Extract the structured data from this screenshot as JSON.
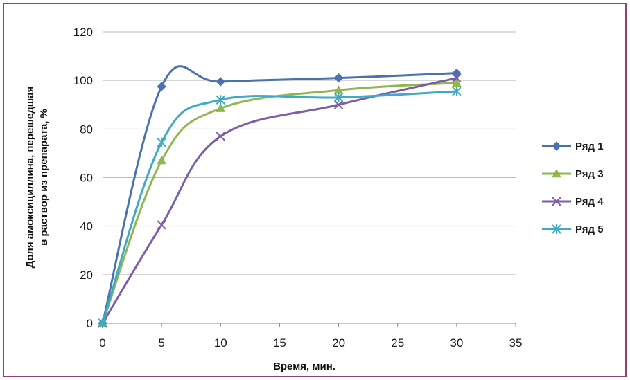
{
  "chart_data": {
    "type": "line",
    "title": "",
    "xlabel": "Время, мин.",
    "ylabel": "Доля амоксициллина, перешедшая\nв раствор из препарата, %",
    "xlim": [
      0,
      35
    ],
    "ylim": [
      0,
      120
    ],
    "x_ticks": [
      0,
      5,
      10,
      15,
      20,
      25,
      30,
      35
    ],
    "y_ticks": [
      0,
      20,
      40,
      60,
      80,
      100,
      120
    ],
    "grid": "horizontal",
    "legend_position": "right",
    "x": [
      0,
      5,
      10,
      20,
      30
    ],
    "series": [
      {
        "name": "Ряд 1",
        "values": [
          0,
          97.5,
          99.5,
          101,
          103
        ],
        "color": "#4a72b0",
        "marker": "diamond"
      },
      {
        "name": "Ряд 3",
        "values": [
          0,
          67,
          88.5,
          96,
          99
        ],
        "color": "#8fb74e",
        "marker": "triangle"
      },
      {
        "name": "Ряд 4",
        "values": [
          0,
          40.5,
          77,
          90,
          101
        ],
        "color": "#7b5ea7",
        "marker": "x"
      },
      {
        "name": "Ряд 5",
        "values": [
          0,
          74.5,
          92,
          93,
          95.5
        ],
        "color": "#3eaac5",
        "marker": "asterisk"
      }
    ]
  }
}
